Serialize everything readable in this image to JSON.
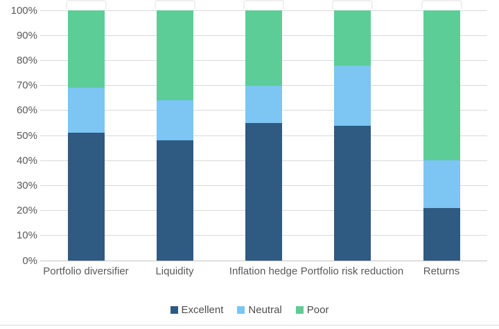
{
  "chart_data": {
    "type": "bar",
    "variant": "100%-stacked-column",
    "title": "",
    "xlabel": "",
    "ylabel": "",
    "categories": [
      "Portfolio diversifier",
      "Liquidity",
      "Inflation hedge",
      "Portfolio risk reduction",
      "Returns"
    ],
    "series": [
      {
        "name": "Excellent",
        "color": "#2f5a82",
        "values": [
          51,
          48,
          55,
          54,
          21
        ]
      },
      {
        "name": "Neutral",
        "color": "#7dc5f2",
        "values": [
          18,
          16,
          15,
          24,
          19
        ]
      },
      {
        "name": "Poor",
        "color": "#5ccd96",
        "values": [
          31,
          36,
          30,
          22,
          60
        ]
      }
    ],
    "y_axis": {
      "min": 0,
      "max": 100,
      "step": 10,
      "format": "percent",
      "tick_labels": [
        "0%",
        "10%",
        "20%",
        "30%",
        "40%",
        "50%",
        "60%",
        "70%",
        "80%",
        "90%",
        "100%"
      ]
    },
    "legend": {
      "position": "bottom",
      "items": [
        "Excellent",
        "Neutral",
        "Poor"
      ]
    },
    "grid": true
  },
  "style": {
    "gridline_color": "#d9d9d9",
    "baseline_color": "#c3c3c3",
    "axis_label_color": "#595959",
    "legend_text_color": "#4d4d4d",
    "background_color": "#ffffff",
    "divider_color": "#d8d8d8"
  }
}
